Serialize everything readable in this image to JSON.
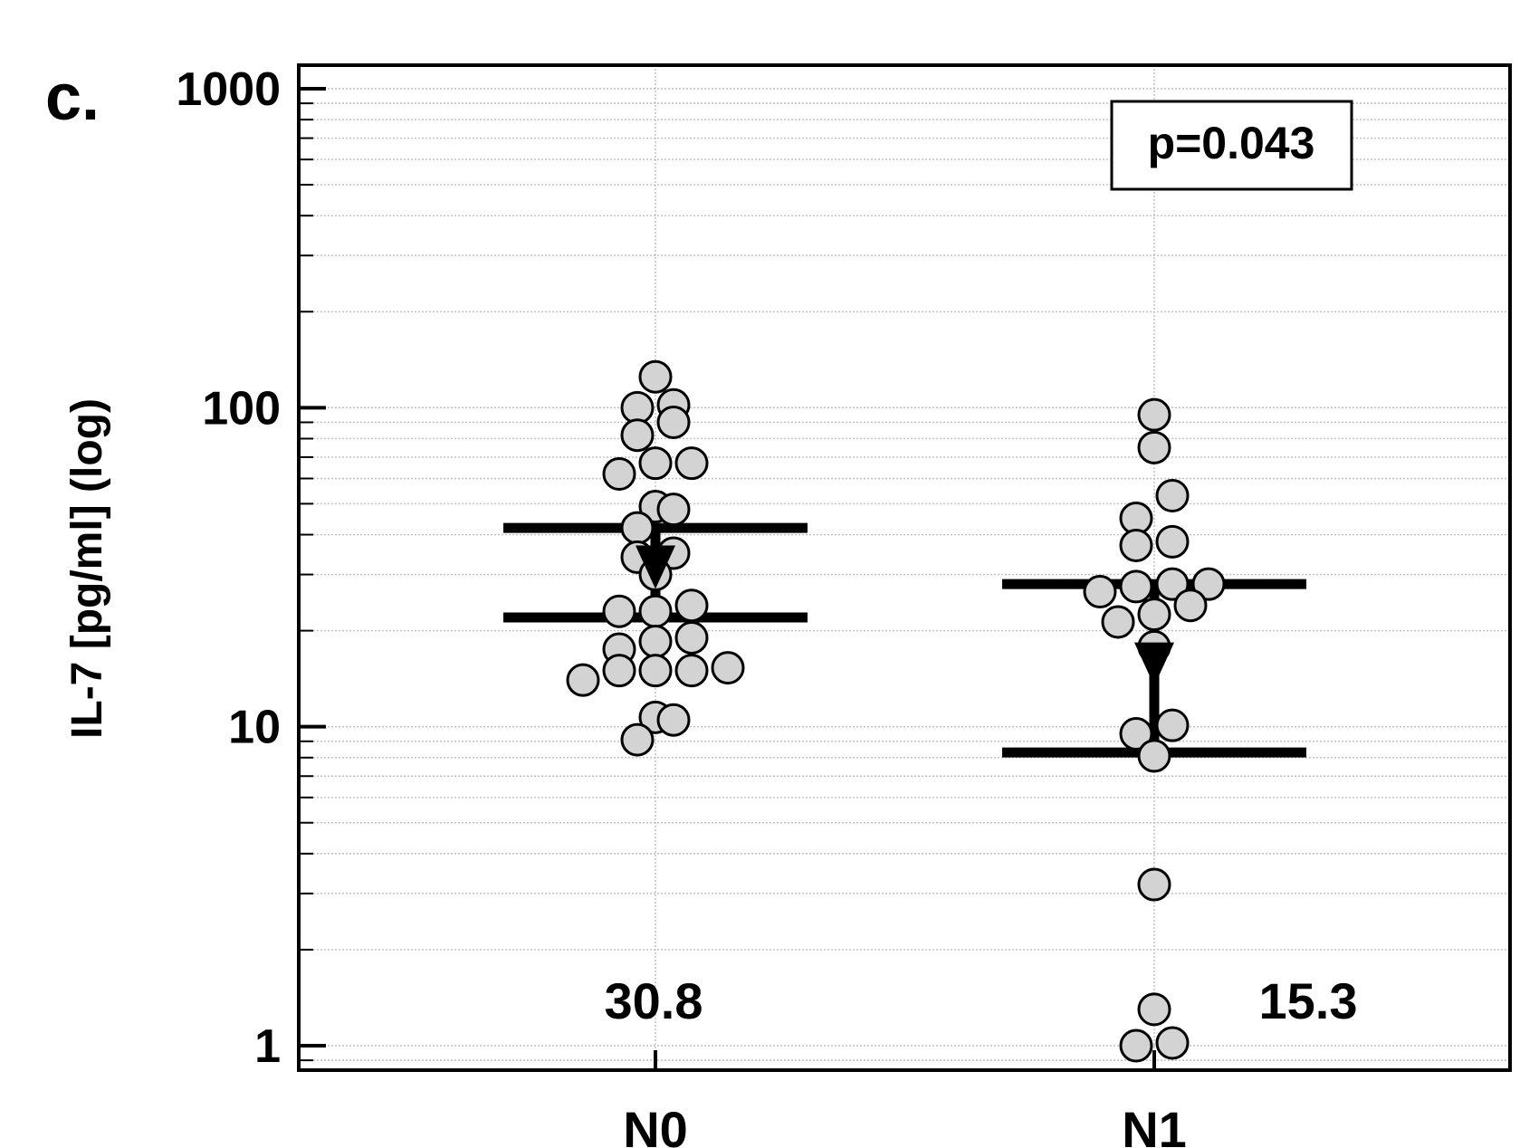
{
  "chart_data": {
    "type": "scatter",
    "panel_label": "c.",
    "ylabel": "IL-7 [pg/ml] (log)",
    "yscale": "log",
    "ylim": [
      0.9,
      1150
    ],
    "yticks": [
      1,
      10,
      100,
      1000
    ],
    "ytick_labels": [
      "1",
      "10",
      "100",
      "1000"
    ],
    "grid": true,
    "categories": [
      "N0",
      "N1"
    ],
    "annotation": "p=0.043",
    "medians": [
      "30.8",
      "15.3"
    ],
    "groups": [
      {
        "name": "N0",
        "median": 30.8,
        "q1": 22,
        "q3": 42,
        "points": [
          {
            "offset": 0,
            "value": 125
          },
          {
            "offset": -0.5,
            "value": 100
          },
          {
            "offset": 0.5,
            "value": 102
          },
          {
            "offset": 0.5,
            "value": 90
          },
          {
            "offset": -0.5,
            "value": 82
          },
          {
            "offset": 0,
            "value": 67
          },
          {
            "offset": 1,
            "value": 67
          },
          {
            "offset": -1,
            "value": 62
          },
          {
            "offset": 0,
            "value": 49
          },
          {
            "offset": 0.5,
            "value": 48
          },
          {
            "offset": -0.5,
            "value": 42
          },
          {
            "offset": 0.5,
            "value": 35
          },
          {
            "offset": -0.5,
            "value": 34
          },
          {
            "offset": 0,
            "value": 30
          },
          {
            "offset": 1,
            "value": 24
          },
          {
            "offset": -1,
            "value": 23
          },
          {
            "offset": 0,
            "value": 23
          },
          {
            "offset": 1,
            "value": 19
          },
          {
            "offset": 0,
            "value": 18.5
          },
          {
            "offset": -1,
            "value": 17.5
          },
          {
            "offset": -1,
            "value": 15
          },
          {
            "offset": 0,
            "value": 15
          },
          {
            "offset": 1,
            "value": 15
          },
          {
            "offset": 2,
            "value": 15.3
          },
          {
            "offset": -2,
            "value": 14
          },
          {
            "offset": 0,
            "value": 10.7
          },
          {
            "offset": 0.5,
            "value": 10.5
          },
          {
            "offset": -0.5,
            "value": 9.1
          }
        ]
      },
      {
        "name": "N1",
        "median": 15.3,
        "q1": 8.3,
        "q3": 28,
        "points": [
          {
            "offset": 0,
            "value": 95
          },
          {
            "offset": 0,
            "value": 75
          },
          {
            "offset": 0.5,
            "value": 53
          },
          {
            "offset": -0.5,
            "value": 45
          },
          {
            "offset": -0.5,
            "value": 37
          },
          {
            "offset": 0.5,
            "value": 38
          },
          {
            "offset": -0.5,
            "value": 27.5
          },
          {
            "offset": 0.5,
            "value": 28
          },
          {
            "offset": 1.5,
            "value": 28
          },
          {
            "offset": -1.5,
            "value": 26.5
          },
          {
            "offset": 1,
            "value": 24
          },
          {
            "offset": 0,
            "value": 22.5
          },
          {
            "offset": -1,
            "value": 21.3
          },
          {
            "offset": 0,
            "value": 17.8
          },
          {
            "offset": 0.5,
            "value": 10.1
          },
          {
            "offset": -0.5,
            "value": 9.5
          },
          {
            "offset": 0,
            "value": 8.1
          },
          {
            "offset": 0,
            "value": 3.2
          },
          {
            "offset": 0,
            "value": 1.3
          },
          {
            "offset": -0.5,
            "value": 1
          },
          {
            "offset": 0.5,
            "value": 1.02
          }
        ]
      }
    ]
  },
  "colors": {
    "point_fill": "#d3d3d3",
    "point_stroke": "#000000",
    "grid": "#bfbfbf",
    "axis": "#000000"
  }
}
